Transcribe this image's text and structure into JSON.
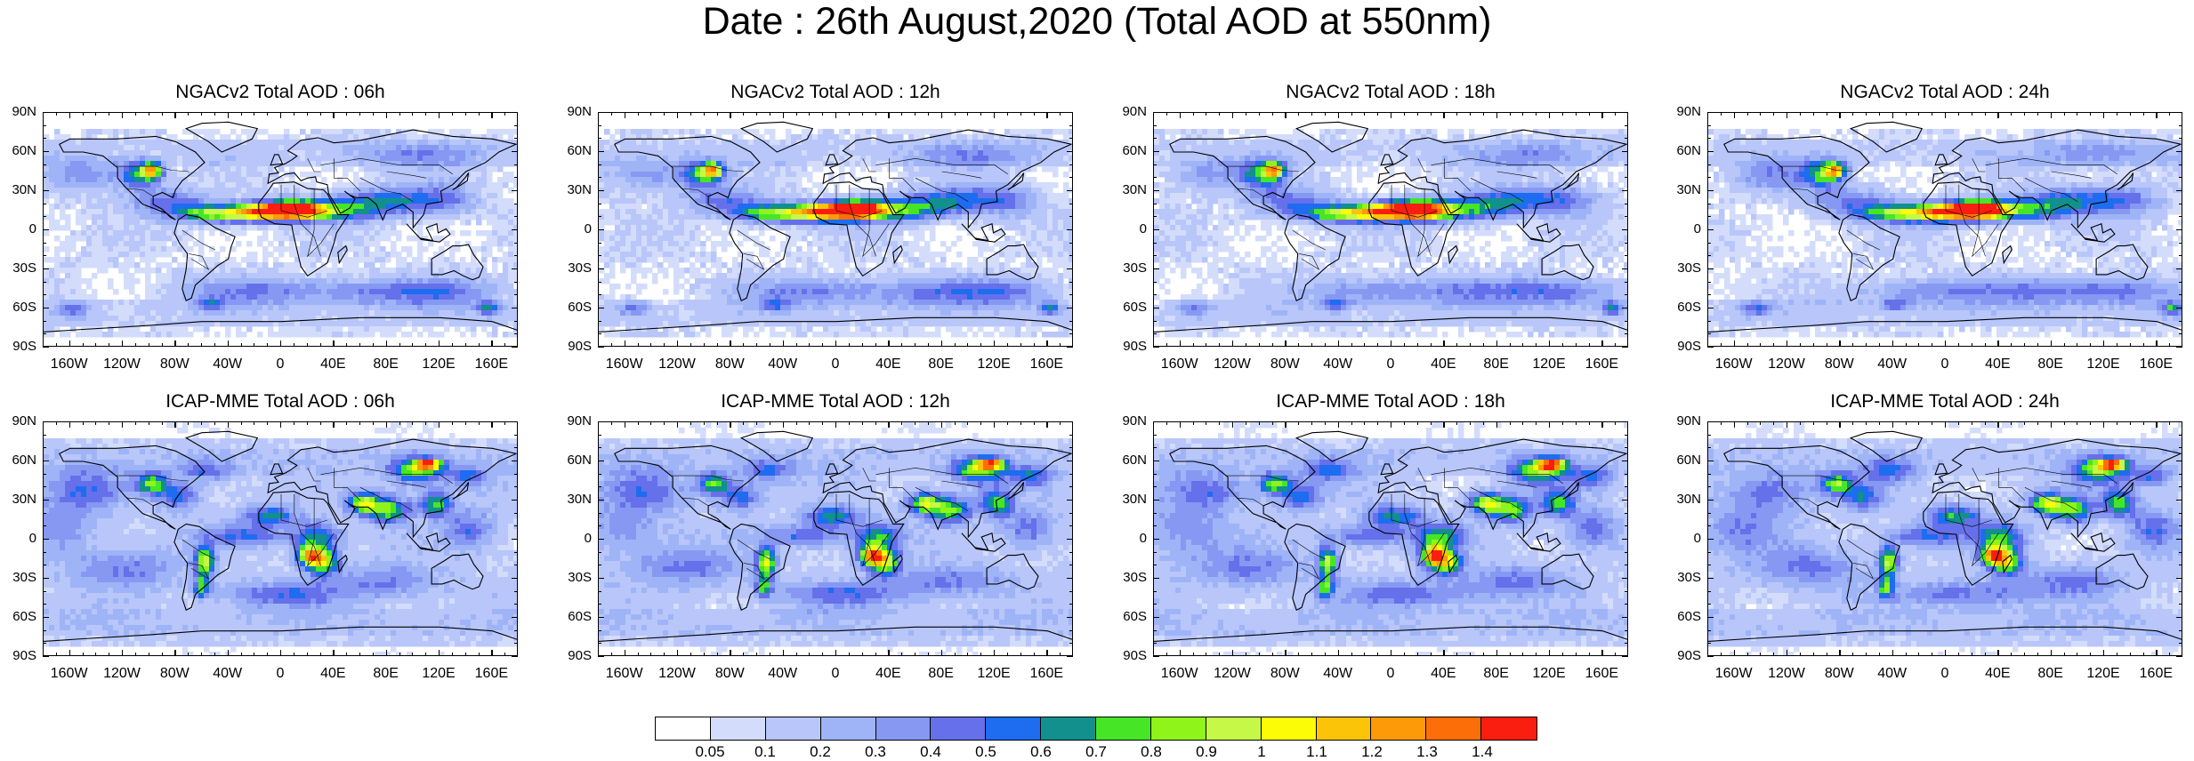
{
  "title": "Date : 26th August,2020 (Total AOD at 550nm)",
  "panels": [
    {
      "title": "NGACv2 Total AOD : 06h",
      "model": "ngac",
      "hour": 6
    },
    {
      "title": "NGACv2 Total AOD : 12h",
      "model": "ngac",
      "hour": 12
    },
    {
      "title": "NGACv2 Total AOD : 18h",
      "model": "ngac",
      "hour": 18
    },
    {
      "title": "NGACv2 Total AOD : 24h",
      "model": "ngac",
      "hour": 24
    },
    {
      "title": "ICAP-MME Total AOD : 06h",
      "model": "icap",
      "hour": 6
    },
    {
      "title": "ICAP-MME Total AOD : 12h",
      "model": "icap",
      "hour": 12
    },
    {
      "title": "ICAP-MME Total AOD : 18h",
      "model": "icap",
      "hour": 18
    },
    {
      "title": "ICAP-MME Total AOD : 24h",
      "model": "icap",
      "hour": 24
    }
  ],
  "lat_labels": [
    "90N",
    "60N",
    "30N",
    "0",
    "30S",
    "60S",
    "90S"
  ],
  "lon_labels": [
    "160W",
    "120W",
    "80W",
    "40W",
    "0",
    "40E",
    "80E",
    "120E",
    "160E"
  ],
  "lon_values": [
    -160,
    -120,
    -80,
    -40,
    0,
    40,
    80,
    120,
    160
  ],
  "lat_values": [
    90,
    60,
    30,
    0,
    -30,
    -60,
    -90
  ],
  "colorbar": {
    "labels": [
      "0.05",
      "0.1",
      "0.2",
      "0.3",
      "0.4",
      "0.5",
      "0.6",
      "0.7",
      "0.8",
      "0.9",
      "1",
      "1.1",
      "1.2",
      "1.3",
      "1.4"
    ],
    "colors": [
      "#ffffff",
      "#d3dcfb",
      "#b8c6fa",
      "#9fb4f7",
      "#8798f3",
      "#6670ea",
      "#1e6cf0",
      "#11908e",
      "#46e627",
      "#8ef419",
      "#c6f847",
      "#fcfc06",
      "#fcc408",
      "#fc9a08",
      "#fc6e08",
      "#fa1e10"
    ]
  }
}
